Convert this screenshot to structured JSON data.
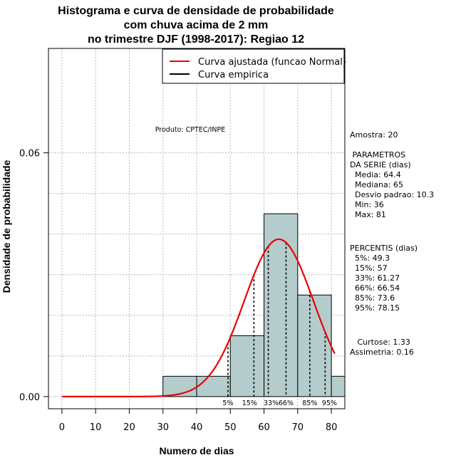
{
  "chart_data": {
    "type": "histogram",
    "title": [
      "Histograma e curva de densidade de probabilidade",
      "com chuva acima de 2 mm",
      "no trimestre DJF (1998-2017): Regiao 12"
    ],
    "xlabel": "Numero de dias",
    "ylabel": "Densidade de probabilidade",
    "xlim": [
      -4,
      84
    ],
    "ylim": [
      -0.003,
      0.0857
    ],
    "x_ticks": [
      0,
      10,
      20,
      30,
      40,
      50,
      60,
      70,
      80
    ],
    "y_ticks": [
      0.0,
      0.06
    ],
    "y_tick_labels": [
      "0.00",
      "0.06"
    ],
    "grid_x": [
      0,
      10,
      20,
      30,
      40,
      50,
      60,
      70,
      80
    ],
    "grid_y": [
      0.0,
      0.01,
      0.02,
      0.03,
      0.04,
      0.05,
      0.06
    ],
    "bins": [
      {
        "from": 30,
        "to": 40,
        "density": 0.005
      },
      {
        "from": 40,
        "to": 50,
        "density": 0.005
      },
      {
        "from": 50,
        "to": 60,
        "density": 0.015
      },
      {
        "from": 60,
        "to": 70,
        "density": 0.045
      },
      {
        "from": 70,
        "to": 80,
        "density": 0.025
      },
      {
        "from": 80,
        "to": 90,
        "density": 0.005
      }
    ],
    "normal_fit": {
      "mean": 64.4,
      "sd": 10.3,
      "x_range": [
        0,
        81
      ]
    },
    "percentile_markers": [
      {
        "label": "5%",
        "value": 49.3
      },
      {
        "label": "15%",
        "value": 57
      },
      {
        "label": "33%",
        "value": 61.27
      },
      {
        "label": "66%",
        "value": 66.54
      },
      {
        "label": "85%",
        "value": 73.6
      },
      {
        "label": "95%",
        "value": 78.15
      }
    ],
    "legend": [
      {
        "label": "Curva ajustada (funcao Normal)",
        "color": "#ee0000"
      },
      {
        "label": "Curva empirica",
        "color": "#000000"
      }
    ],
    "bar_color": "#b5cccc",
    "curve_color": "#ee0000"
  },
  "annotation": "Produto: CPTEC/INPE",
  "stats": {
    "amostra": "Amostra: 20",
    "parametros": [
      " PARAMETROS",
      "DA SERIE (dias)",
      "  Media: 64.4",
      "  Mediana: 65",
      "  Desvio padrao: 10.3",
      "  Min: 36",
      "  Max: 81"
    ],
    "percentis": [
      "PERCENTIS (dias)",
      "  5%: 49.3",
      "  15%: 57",
      "  33%: 61.27",
      "  66%: 66.54",
      "  85%: 73.6",
      "  95%: 78.15"
    ],
    "curtose": "   Curtose: 1.33",
    "assimetria": "Assimetria: 0.16"
  }
}
